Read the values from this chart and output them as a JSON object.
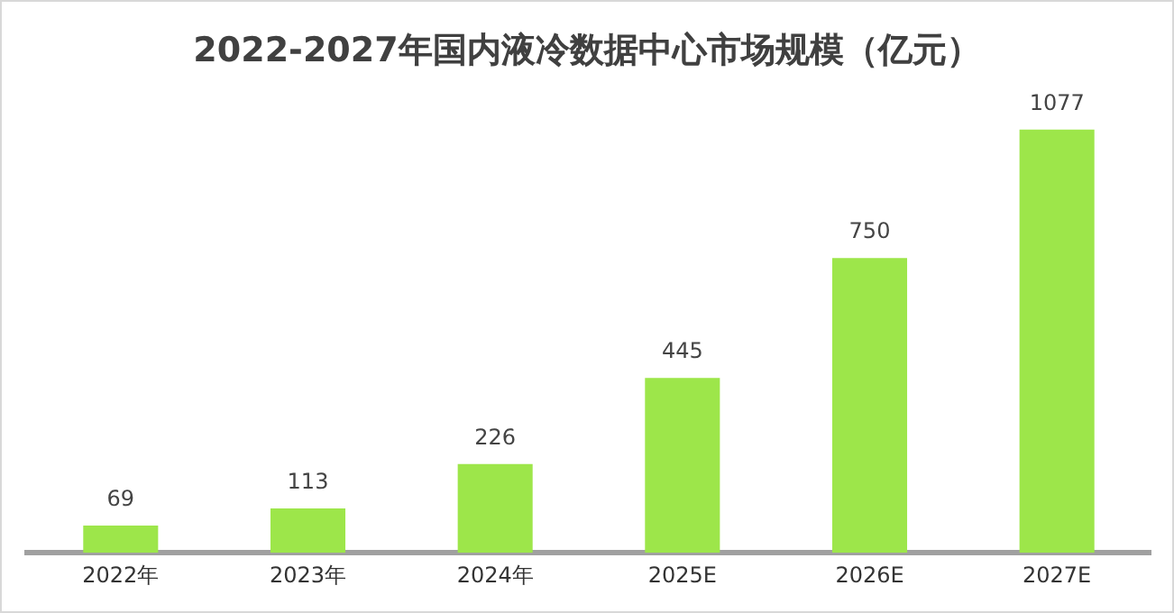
{
  "chart_data": {
    "type": "bar",
    "title": "2022-2027年国内液冷数据中心市场规模（亿元）",
    "categories": [
      "2022年",
      "2023年",
      "2024年",
      "2025E",
      "2026E",
      "2027E"
    ],
    "values": [
      69,
      113,
      226,
      445,
      750,
      1077
    ],
    "color": "#9de64a",
    "data_labels": true,
    "grid": false,
    "legend": false,
    "tick_labels": "x"
  }
}
